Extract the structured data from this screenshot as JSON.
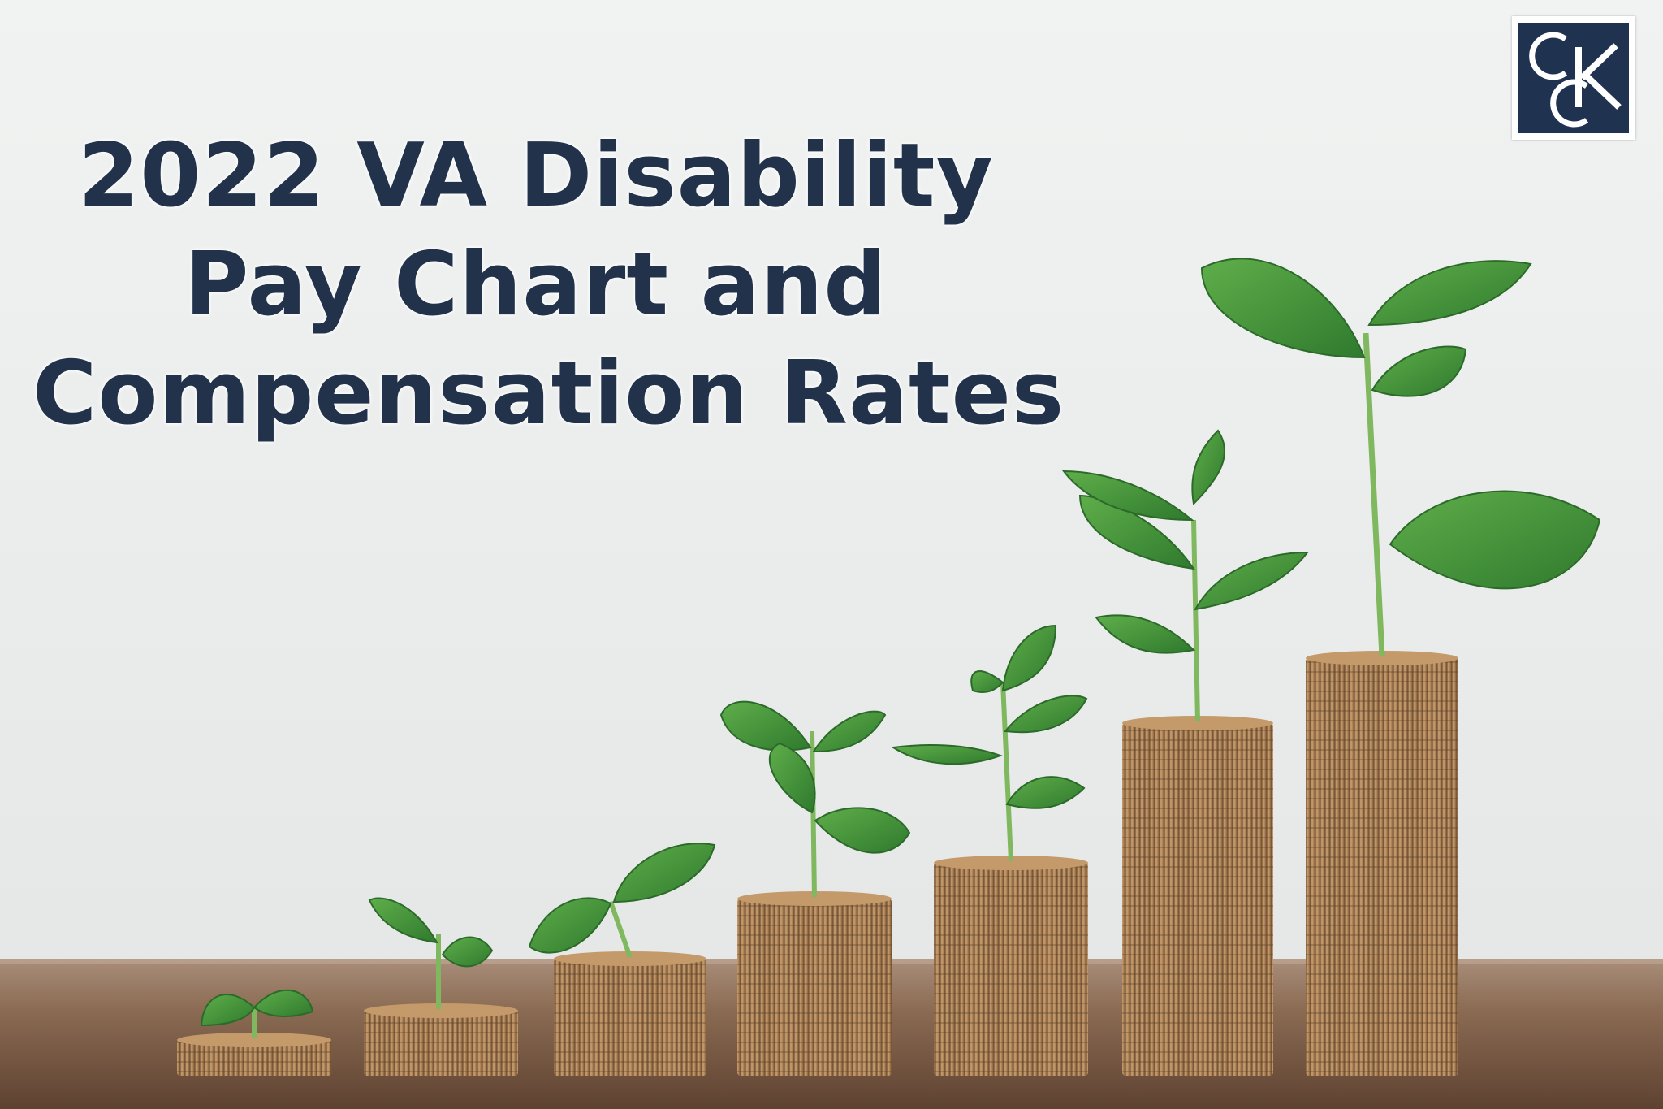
{
  "title": {
    "line1": "2022 VA Disability",
    "line2": "Pay Chart and",
    "line3": "Compensation Rates"
  },
  "logo": {
    "text": "CCK",
    "colors": {
      "navy": "#1f3350",
      "white": "#ffffff"
    }
  },
  "colors": {
    "title": "#22324a",
    "background": "#e9ebea",
    "table": "#7a5a42",
    "coin": "#b78a5a",
    "leaf": "#3f8f3a"
  },
  "scene": {
    "coin_stacks": 7,
    "description_icon": "coin-stacks-with-seedlings"
  }
}
